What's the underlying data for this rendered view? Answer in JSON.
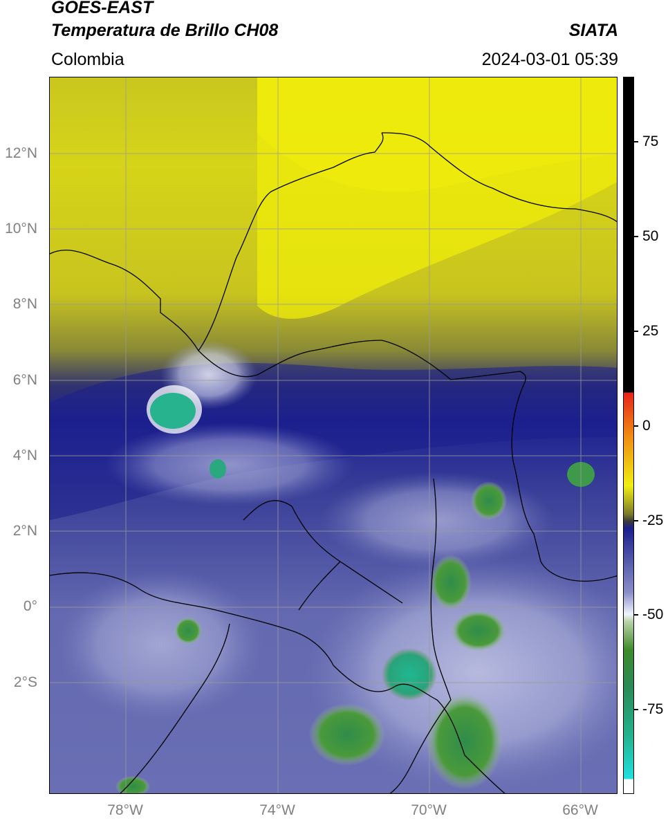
{
  "header": {
    "title_line1": "GOES-EAST",
    "title_line2": "Temperatura de Brillo CH08",
    "brand": "SIATA",
    "region": "Colombia",
    "timestamp": "2024-03-01 05:39"
  },
  "map": {
    "lat_labels": [
      "12°N",
      "10°N",
      "8°N",
      "6°N",
      "4°N",
      "2°N",
      "0°",
      "2°S"
    ],
    "lon_labels": [
      "78°W",
      "74°W",
      "70°W",
      "66°W"
    ],
    "gridline_color": "#9a9a9a"
  },
  "colorbar": {
    "labels": [
      "75",
      "50",
      "25",
      "0",
      "-25",
      "-50",
      "-75"
    ],
    "range": [
      -95,
      90
    ],
    "colors": {
      "top_black": "#000000",
      "red": "#e8231b",
      "orange": "#f08a12",
      "yellow": "#f0ee12",
      "olive": "#7a7a2a",
      "navy": "#1b1f8c",
      "periwinkle": "#6a70b8",
      "white": "#f2f4ff",
      "green": "#3f8a2a",
      "teal": "#22b38e",
      "cyan": "#20e0e0"
    }
  }
}
